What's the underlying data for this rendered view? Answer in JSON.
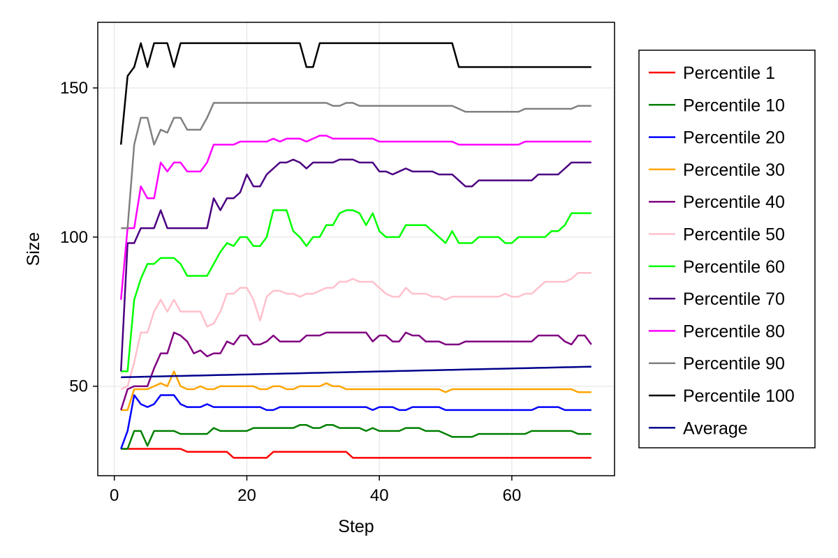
{
  "chart_data": {
    "type": "line",
    "xlabel": "Step",
    "ylabel": "Size",
    "xlim": [
      -2.5,
      75.5
    ],
    "ylim": [
      20,
      172
    ],
    "xticks": [
      0,
      20,
      40,
      60
    ],
    "yticks": [
      50,
      100,
      150
    ],
    "grid": true,
    "legend_position": "right",
    "x": [
      1,
      2,
      3,
      4,
      5,
      6,
      7,
      8,
      9,
      10,
      11,
      12,
      13,
      14,
      15,
      16,
      17,
      18,
      19,
      20,
      21,
      22,
      23,
      24,
      25,
      26,
      27,
      28,
      29,
      30,
      31,
      32,
      33,
      34,
      35,
      36,
      37,
      38,
      39,
      40,
      41,
      42,
      43,
      44,
      45,
      46,
      47,
      48,
      49,
      50,
      51,
      52,
      53,
      54,
      55,
      56,
      57,
      58,
      59,
      60,
      61,
      62,
      63,
      64,
      65,
      66,
      67,
      68,
      69,
      70,
      71,
      72
    ],
    "series": [
      {
        "name": "Percentile 1",
        "color": "#ff0000",
        "values": [
          29,
          29,
          29,
          29,
          29,
          29,
          29,
          29,
          29,
          29,
          28,
          28,
          28,
          28,
          28,
          28,
          28,
          26,
          26,
          26,
          26,
          26,
          26,
          28,
          28,
          28,
          28,
          28,
          28,
          28,
          28,
          28,
          28,
          28,
          28,
          26,
          26,
          26,
          26,
          26,
          26,
          26,
          26,
          26,
          26,
          26,
          26,
          26,
          26,
          26,
          26,
          26,
          26,
          26,
          26,
          26,
          26,
          26,
          26,
          26,
          26,
          26,
          26,
          26,
          26,
          26,
          26,
          26,
          26,
          26,
          26,
          26
        ]
      },
      {
        "name": "Percentile 10",
        "color": "#008000",
        "values": [
          29,
          29,
          35,
          35,
          30,
          35,
          35,
          35,
          35,
          34,
          34,
          34,
          34,
          34,
          36,
          35,
          35,
          35,
          35,
          35,
          36,
          36,
          36,
          36,
          36,
          36,
          36,
          37,
          37,
          36,
          36,
          37,
          37,
          36,
          36,
          36,
          36,
          35,
          36,
          35,
          35,
          35,
          35,
          36,
          36,
          36,
          35,
          35,
          35,
          34,
          33,
          33,
          33,
          33,
          34,
          34,
          34,
          34,
          34,
          34,
          34,
          34,
          35,
          35,
          35,
          35,
          35,
          35,
          35,
          34,
          34,
          34
        ]
      },
      {
        "name": "Percentile 20",
        "color": "#0000ff",
        "values": [
          29,
          35,
          47,
          44,
          43,
          44,
          47,
          47,
          47,
          44,
          43,
          43,
          43,
          44,
          43,
          43,
          43,
          43,
          43,
          43,
          43,
          43,
          42,
          42,
          43,
          43,
          43,
          43,
          43,
          43,
          43,
          43,
          43,
          43,
          43,
          43,
          43,
          43,
          42,
          43,
          43,
          43,
          42,
          42,
          43,
          43,
          43,
          43,
          43,
          42,
          42,
          42,
          42,
          42,
          42,
          42,
          42,
          42,
          42,
          42,
          42,
          42,
          42,
          43,
          43,
          43,
          43,
          42,
          42,
          42,
          42,
          42
        ]
      },
      {
        "name": "Percentile 30",
        "color": "#ffa500",
        "values": [
          42,
          42,
          49,
          49,
          49,
          50,
          51,
          50,
          55,
          50,
          49,
          49,
          50,
          49,
          49,
          50,
          50,
          50,
          50,
          50,
          50,
          49,
          49,
          50,
          50,
          49,
          49,
          50,
          50,
          50,
          50,
          51,
          50,
          50,
          49,
          49,
          49,
          49,
          49,
          49,
          49,
          49,
          49,
          49,
          49,
          49,
          49,
          49,
          49,
          48,
          49,
          49,
          49,
          49,
          49,
          49,
          49,
          49,
          49,
          49,
          49,
          49,
          49,
          49,
          49,
          49,
          49,
          49,
          49,
          48,
          48,
          48
        ]
      },
      {
        "name": "Percentile 40",
        "color": "#800080",
        "values": [
          42,
          49,
          50,
          50,
          50,
          56,
          61,
          61,
          68,
          67,
          65,
          61,
          62,
          60,
          61,
          61,
          65,
          64,
          67,
          67,
          64,
          64,
          65,
          67,
          65,
          65,
          65,
          65,
          67,
          67,
          67,
          68,
          68,
          68,
          68,
          68,
          68,
          68,
          65,
          67,
          67,
          65,
          65,
          68,
          67,
          67,
          65,
          65,
          65,
          64,
          64,
          64,
          65,
          65,
          65,
          65,
          65,
          65,
          65,
          65,
          65,
          65,
          65,
          67,
          67,
          67,
          67,
          65,
          64,
          67,
          67,
          64
        ]
      },
      {
        "name": "Percentile 50",
        "color": "#ffc0cb",
        "values": [
          49,
          50,
          58,
          68,
          68,
          75,
          79,
          75,
          79,
          75,
          75,
          75,
          75,
          70,
          71,
          75,
          81,
          81,
          83,
          83,
          79,
          72,
          80,
          82,
          82,
          81,
          81,
          80,
          81,
          81,
          82,
          83,
          83,
          85,
          85,
          86,
          85,
          85,
          85,
          83,
          81,
          80,
          80,
          83,
          81,
          81,
          81,
          80,
          80,
          79,
          80,
          80,
          80,
          80,
          80,
          80,
          80,
          80,
          81,
          80,
          80,
          81,
          81,
          83,
          85,
          85,
          85,
          85,
          86,
          88,
          88,
          88
        ]
      },
      {
        "name": "Percentile 60",
        "color": "#00ff00",
        "values": [
          55,
          55,
          79,
          86,
          91,
          91,
          93,
          93,
          93,
          91,
          87,
          87,
          87,
          87,
          91,
          95,
          98,
          97,
          100,
          100,
          97,
          97,
          100,
          109,
          109,
          109,
          102,
          100,
          97,
          100,
          100,
          104,
          104,
          108,
          109,
          109,
          108,
          104,
          108,
          102,
          100,
          100,
          100,
          104,
          104,
          104,
          104,
          102,
          100,
          98,
          102,
          98,
          98,
          98,
          100,
          100,
          100,
          100,
          98,
          98,
          100,
          100,
          100,
          100,
          100,
          102,
          102,
          104,
          108,
          108,
          108,
          108
        ]
      },
      {
        "name": "Percentile 70",
        "color": "#4b0082",
        "values": [
          55,
          98,
          98,
          103,
          103,
          103,
          109,
          103,
          103,
          103,
          103,
          103,
          103,
          103,
          113,
          109,
          113,
          113,
          115,
          121,
          117,
          117,
          121,
          123,
          125,
          125,
          126,
          125,
          123,
          125,
          125,
          125,
          125,
          126,
          126,
          126,
          125,
          125,
          125,
          122,
          122,
          121,
          122,
          123,
          122,
          122,
          122,
          122,
          121,
          121,
          121,
          119,
          117,
          117,
          119,
          119,
          119,
          119,
          119,
          119,
          119,
          119,
          119,
          121,
          121,
          121,
          121,
          123,
          125,
          125,
          125,
          125
        ]
      },
      {
        "name": "Percentile 80",
        "color": "#ff00ff",
        "values": [
          79,
          103,
          103,
          117,
          113,
          113,
          125,
          122,
          125,
          125,
          122,
          122,
          122,
          125,
          131,
          131,
          131,
          131,
          132,
          132,
          132,
          132,
          132,
          133,
          132,
          133,
          133,
          133,
          132,
          133,
          134,
          134,
          133,
          133,
          133,
          133,
          133,
          133,
          133,
          132,
          132,
          132,
          132,
          132,
          132,
          132,
          132,
          132,
          132,
          132,
          132,
          131,
          131,
          131,
          131,
          131,
          131,
          131,
          131,
          131,
          131,
          132,
          132,
          132,
          132,
          132,
          132,
          132,
          132,
          132,
          132,
          132
        ]
      },
      {
        "name": "Percentile 90",
        "color": "#808080",
        "values": [
          103,
          103,
          131,
          140,
          140,
          131,
          136,
          135,
          140,
          140,
          136,
          136,
          136,
          140,
          145,
          145,
          145,
          145,
          145,
          145,
          145,
          145,
          145,
          145,
          145,
          145,
          145,
          145,
          145,
          145,
          145,
          145,
          144,
          144,
          145,
          145,
          144,
          144,
          144,
          144,
          144,
          144,
          144,
          144,
          144,
          144,
          144,
          144,
          144,
          144,
          144,
          143,
          142,
          142,
          142,
          142,
          142,
          142,
          142,
          142,
          142,
          143,
          143,
          143,
          143,
          143,
          143,
          143,
          143,
          144,
          144,
          144
        ]
      },
      {
        "name": "Percentile 100",
        "color": "#000000",
        "values": [
          131,
          154,
          157,
          165,
          157,
          165,
          165,
          165,
          157,
          165,
          165,
          165,
          165,
          165,
          165,
          165,
          165,
          165,
          165,
          165,
          165,
          165,
          165,
          165,
          165,
          165,
          165,
          165,
          157,
          157,
          165,
          165,
          165,
          165,
          165,
          165,
          165,
          165,
          165,
          165,
          165,
          165,
          165,
          165,
          165,
          165,
          165,
          165,
          165,
          165,
          165,
          157,
          157,
          157,
          157,
          157,
          157,
          157,
          157,
          157,
          157,
          157,
          157,
          157,
          157,
          157,
          157,
          157,
          157,
          157,
          157,
          157
        ]
      },
      {
        "name": "Average",
        "color": "#00008b",
        "values": [
          53,
          53.05,
          53.1,
          53.15,
          53.2,
          53.25,
          53.3,
          53.35,
          53.4,
          53.45,
          53.5,
          53.55,
          53.6,
          53.65,
          53.7,
          53.75,
          53.8,
          53.85,
          53.9,
          53.95,
          54,
          54.05,
          54.1,
          54.15,
          54.2,
          54.25,
          54.3,
          54.35,
          54.4,
          54.45,
          54.5,
          54.55,
          54.6,
          54.65,
          54.7,
          54.75,
          54.8,
          54.85,
          54.9,
          54.95,
          55,
          55.05,
          55.1,
          55.15,
          55.2,
          55.25,
          55.3,
          55.35,
          55.4,
          55.45,
          55.5,
          55.55,
          55.6,
          55.65,
          55.7,
          55.75,
          55.8,
          55.85,
          55.9,
          55.95,
          56,
          56.05,
          56.1,
          56.15,
          56.2,
          56.25,
          56.3,
          56.35,
          56.4,
          56.45,
          56.5,
          56.55
        ]
      }
    ]
  }
}
